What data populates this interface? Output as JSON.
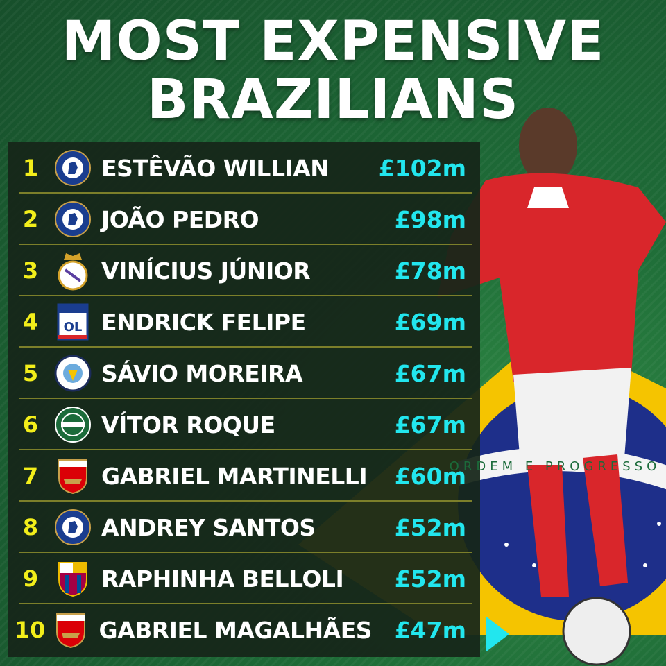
{
  "title": {
    "line1": "MOST EXPENSIVE",
    "line2": "BRAZILIANS"
  },
  "colors": {
    "rank": "#f2ee1a",
    "fee": "#22e6ee",
    "background": "#1e6b37",
    "panel": "#16261a"
  },
  "flag_motto": "ORDEM E PROGRESSO",
  "players": [
    {
      "rank": "1",
      "name": "ESTÊVÃO WILLIAN",
      "fee": "£102m",
      "club": "chelsea"
    },
    {
      "rank": "2",
      "name": "JOÃO PEDRO",
      "fee": "£98m",
      "club": "chelsea"
    },
    {
      "rank": "3",
      "name": "VINÍCIUS JÚNIOR",
      "fee": "£78m",
      "club": "real-madrid"
    },
    {
      "rank": "4",
      "name": "ENDRICK FELIPE",
      "fee": "£69m",
      "club": "lyon"
    },
    {
      "rank": "5",
      "name": "SÁVIO MOREIRA",
      "fee": "£67m",
      "club": "manchester-city"
    },
    {
      "rank": "6",
      "name": "VÍTOR ROQUE",
      "fee": "£67m",
      "club": "palmeiras"
    },
    {
      "rank": "7",
      "name": "GABRIEL MARTINELLI",
      "fee": "£60m",
      "club": "arsenal"
    },
    {
      "rank": "8",
      "name": "ANDREY SANTOS",
      "fee": "£52m",
      "club": "chelsea"
    },
    {
      "rank": "9",
      "name": "RAPHINHA BELLOLI",
      "fee": "£52m",
      "club": "barcelona"
    },
    {
      "rank": "10",
      "name": "GABRIEL MAGALHÃES",
      "fee": "£47m",
      "club": "arsenal"
    }
  ]
}
